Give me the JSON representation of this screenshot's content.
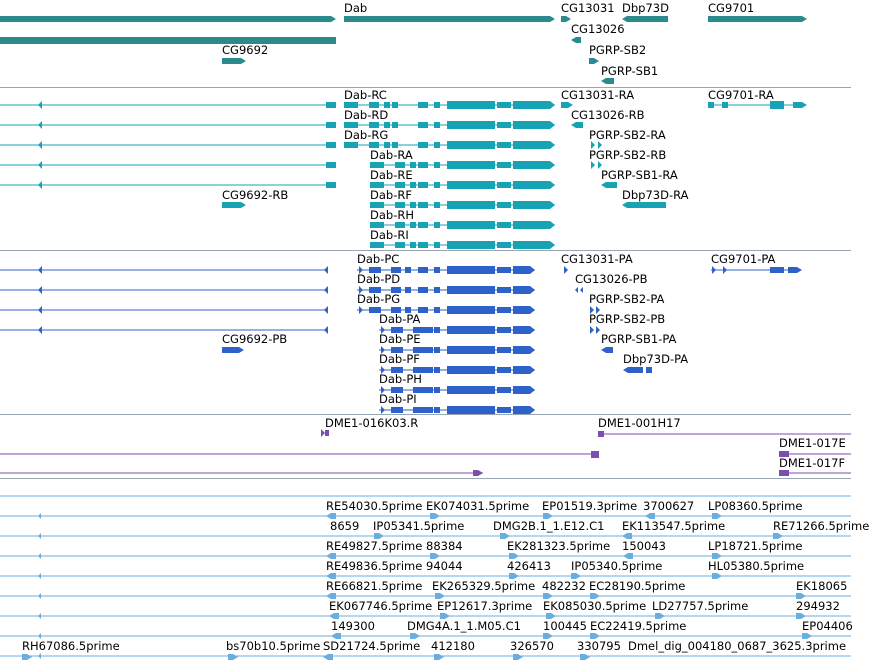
{
  "colors": {
    "gene": "#2a8a8c",
    "transcript": "#17a3b4",
    "protein": "#2f62c8",
    "clone": "#7a4fb0",
    "est": "#6aaee0",
    "separator": "#9aa6b2"
  },
  "gene_track": {
    "labels": [
      "Dab",
      "CG13031",
      "Dbp73D",
      "CG9701",
      "CG13026",
      "CG9692",
      "PGRP-SB2",
      "PGRP-SB1"
    ]
  },
  "transcript_track": {
    "labels": [
      "Dab-RC",
      "CG13031-RA",
      "CG9701-RA",
      "Dab-RD",
      "CG13026-RB",
      "Dab-RG",
      "PGRP-SB2-RA",
      "Dab-RA",
      "PGRP-SB2-RB",
      "Dab-RE",
      "PGRP-SB1-RA",
      "CG9692-RB",
      "Dab-RF",
      "Dbp73D-RA",
      "Dab-RH",
      "Dab-RI"
    ]
  },
  "protein_track": {
    "labels": [
      "Dab-PC",
      "CG13031-PA",
      "CG9701-PA",
      "Dab-PD",
      "CG13026-PB",
      "Dab-PG",
      "PGRP-SB2-PA",
      "Dab-PA",
      "PGRP-SB2-PB",
      "Dab-PE",
      "PGRP-SB1-PA",
      "CG9692-PB",
      "Dab-PF",
      "Dbp73D-PA",
      "Dab-PH",
      "Dab-PI"
    ]
  },
  "clone_track": {
    "labels": [
      "DME1-016K03.R",
      "DME1-001H17",
      "DME1-017E",
      "DME1-017F"
    ]
  },
  "est_track": {
    "labels": [
      "RE54030.5prime",
      "EK074031.5prime",
      "EP01519.3prime",
      "3700627",
      "LP08360.5prime",
      "8659",
      "IP05341.5prime",
      "DMG2B.1_1.E12.C1",
      "EK113547.5prime",
      "RE71266.5prime",
      "RE49827.5prime",
      "88384",
      "EK281323.5prime",
      "150043",
      "LP18721.5prime",
      "RE49836.5prime",
      "94044",
      "426413",
      "IP05340.5prime",
      "HL05380.5prime",
      "RE66821.5prime",
      "EK265329.5prime",
      "482232",
      "EC28190.5prime",
      "EK18065",
      "EK067746.5prime",
      "EP12617.3prime",
      "EK085030.5prime",
      "LD27757.5prime",
      "294932",
      "149300",
      "DMG4A.1_1.M05.C1",
      "100445",
      "EC22419.5prime",
      "EP04406",
      "RH67086.5prime",
      "bs70b10.5prime",
      "SD21724.5prime",
      "412180",
      "326570",
      "330795",
      "Dmel_dig_004180_0687_3625.3prime"
    ]
  }
}
